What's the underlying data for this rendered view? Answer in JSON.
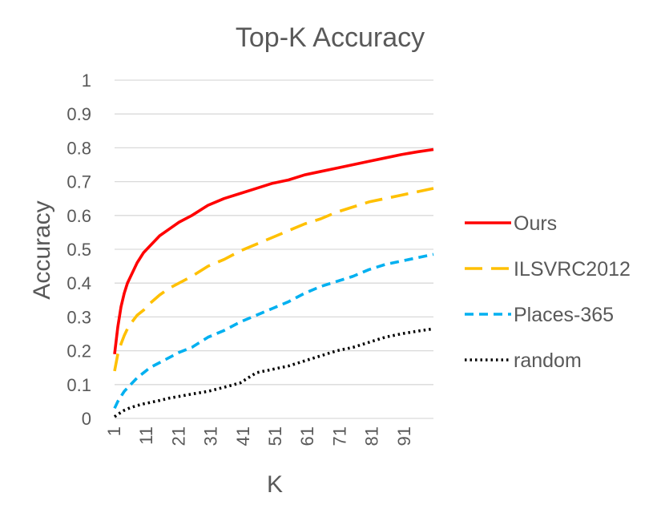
{
  "chart_data": {
    "type": "line",
    "title": "Top-K Accuracy",
    "xlabel": "K",
    "ylabel": "Accuracy",
    "xlim": [
      1,
      100
    ],
    "ylim": [
      0,
      1
    ],
    "y_ticks": [
      "0",
      "0.1",
      "0.2",
      "0.3",
      "0.4",
      "0.5",
      "0.6",
      "0.7",
      "0.8",
      "0.9",
      "1"
    ],
    "x_ticks": [
      "1",
      "11",
      "21",
      "31",
      "41",
      "51",
      "61",
      "71",
      "81",
      "91"
    ],
    "grid": "horizontal",
    "legend_position": "right",
    "x": [
      1,
      2,
      3,
      4,
      5,
      6,
      8,
      10,
      12,
      15,
      18,
      21,
      25,
      30,
      35,
      40,
      45,
      50,
      55,
      60,
      65,
      70,
      75,
      80,
      85,
      90,
      95,
      100
    ],
    "series": [
      {
        "name": "Ours",
        "color": "#ff0000",
        "dash": "solid",
        "values": [
          0.19,
          0.27,
          0.33,
          0.37,
          0.4,
          0.42,
          0.46,
          0.49,
          0.51,
          0.54,
          0.56,
          0.58,
          0.6,
          0.63,
          0.65,
          0.665,
          0.68,
          0.695,
          0.705,
          0.72,
          0.73,
          0.74,
          0.75,
          0.76,
          0.77,
          0.78,
          0.788,
          0.795
        ]
      },
      {
        "name": "ILSVRC2012",
        "color": "#ffc000",
        "dash": "long-dash",
        "values": [
          0.14,
          0.19,
          0.22,
          0.245,
          0.265,
          0.28,
          0.305,
          0.32,
          0.34,
          0.365,
          0.385,
          0.4,
          0.42,
          0.45,
          0.47,
          0.495,
          0.515,
          0.535,
          0.555,
          0.575,
          0.59,
          0.61,
          0.625,
          0.64,
          0.65,
          0.66,
          0.67,
          0.68
        ]
      },
      {
        "name": "Places-365",
        "color": "#00b0f0",
        "dash": "dash",
        "values": [
          0.03,
          0.05,
          0.065,
          0.08,
          0.09,
          0.1,
          0.12,
          0.135,
          0.15,
          0.165,
          0.18,
          0.195,
          0.21,
          0.24,
          0.26,
          0.285,
          0.305,
          0.325,
          0.345,
          0.37,
          0.39,
          0.405,
          0.42,
          0.44,
          0.455,
          0.465,
          0.475,
          0.485
        ]
      },
      {
        "name": "random",
        "color": "#000000",
        "dash": "dot",
        "values": [
          0.005,
          0.012,
          0.018,
          0.024,
          0.028,
          0.032,
          0.038,
          0.043,
          0.047,
          0.053,
          0.06,
          0.065,
          0.072,
          0.08,
          0.092,
          0.105,
          0.135,
          0.145,
          0.155,
          0.17,
          0.185,
          0.2,
          0.21,
          0.225,
          0.24,
          0.25,
          0.258,
          0.265
        ]
      }
    ]
  }
}
